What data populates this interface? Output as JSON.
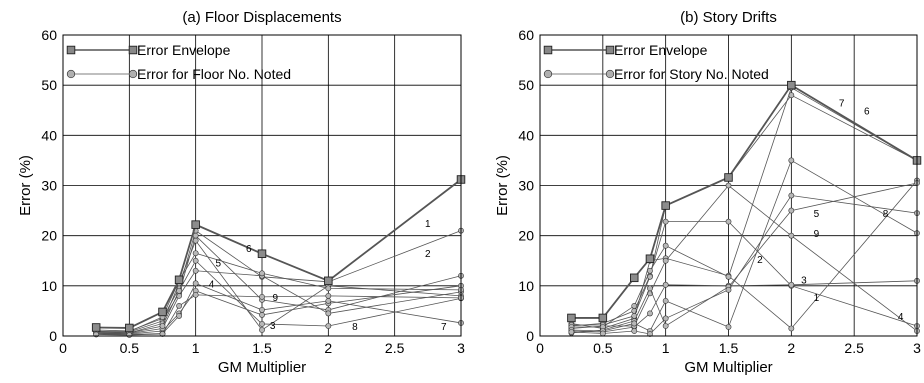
{
  "figure": {
    "panels_count": 2
  },
  "chart_data": [
    {
      "type": "line",
      "title": "(a) Floor Displacements",
      "xlabel": "GM Multiplier",
      "ylabel": "Error (%)",
      "xlim": [
        0,
        3
      ],
      "ylim": [
        0,
        60
      ],
      "xticks": [
        0,
        0.5,
        1,
        1.5,
        2,
        2.5,
        3
      ],
      "xtick_labels": [
        "0",
        "0.5",
        "1",
        "1.5",
        "2",
        "2.5",
        "3"
      ],
      "yticks": [
        0,
        10,
        20,
        30,
        40,
        50,
        60
      ],
      "ytick_labels": [
        "0",
        "10",
        "20",
        "30",
        "40",
        "50",
        "60"
      ],
      "x_scale": "piecewise-linear (0 to 2 spans 4 units, 2 to 3 spans 2 units; 2.5 gridline is the midpoint of 2 and 3)",
      "grid": true,
      "legend": {
        "position": "top-left",
        "entries": [
          {
            "label": "Error Envelope",
            "marker": "square",
            "color": "#888888"
          },
          {
            "label": "Error for Floor No. Noted",
            "marker": "circle",
            "color": "#b0b0b0"
          }
        ]
      },
      "envelope": {
        "name": "Error Envelope",
        "x": [
          0.25,
          0.5,
          0.75,
          0.875,
          1.0,
          1.5,
          2.0,
          3.0
        ],
        "y": [
          1.7,
          1.6,
          4.8,
          11.2,
          22.2,
          16.4,
          11.0,
          31.2
        ]
      },
      "series": [
        {
          "label": "1",
          "x": [
            0.25,
            0.5,
            0.75,
            0.875,
            1.0,
            1.5,
            2.0,
            3.0
          ],
          "y": [
            1.2,
            1.0,
            3.5,
            9.5,
            21.0,
            11.8,
            10.8,
            21.0
          ]
        },
        {
          "label": "2",
          "x": [
            0.25,
            0.5,
            0.75,
            0.875,
            1.0,
            1.5,
            2.0,
            3.0
          ],
          "y": [
            0.8,
            0.8,
            3.0,
            8.5,
            20.0,
            7.2,
            5.2,
            12.0
          ]
        },
        {
          "label": "3",
          "x": [
            0.25,
            0.5,
            0.75,
            0.875,
            1.0,
            1.5,
            2.0,
            3.0
          ],
          "y": [
            1.0,
            0.6,
            2.5,
            10.5,
            19.0,
            1.2,
            10.0,
            8.0
          ]
        },
        {
          "label": "4",
          "x": [
            0.25,
            0.5,
            0.75,
            0.875,
            1.0,
            1.5,
            2.0,
            3.0
          ],
          "y": [
            0.5,
            0.4,
            1.0,
            4.5,
            9.0,
            4.2,
            6.5,
            10.0
          ]
        },
        {
          "label": "5",
          "x": [
            0.25,
            0.5,
            0.75,
            0.875,
            1.0,
            1.5,
            2.0,
            3.0
          ],
          "y": [
            0.6,
            0.5,
            1.5,
            8.0,
            13.0,
            12.0,
            4.5,
            8.8
          ]
        },
        {
          "label": "6",
          "x": [
            0.25,
            0.5,
            0.75,
            0.875,
            1.0,
            1.5,
            2.0,
            3.0
          ],
          "y": [
            0.9,
            0.9,
            3.8,
            11.0,
            16.5,
            12.5,
            9.5,
            9.2
          ]
        },
        {
          "label": "7",
          "x": [
            0.25,
            0.5,
            0.75,
            0.875,
            1.0,
            1.5,
            2.0,
            3.0
          ],
          "y": [
            0.4,
            0.3,
            0.5,
            4.0,
            10.5,
            5.2,
            7.0,
            2.6
          ]
        },
        {
          "label": "8",
          "x": [
            0.25,
            0.5,
            0.75,
            0.875,
            1.0,
            1.5,
            2.0,
            3.0
          ],
          "y": [
            0.7,
            0.6,
            2.0,
            9.0,
            15.0,
            2.4,
            2.0,
            7.5
          ]
        },
        {
          "label": "9",
          "x": [
            0.25,
            0.5,
            0.75,
            0.875,
            1.0,
            1.5,
            2.0,
            3.0
          ],
          "y": [
            0.3,
            0.2,
            0.4,
            6.0,
            8.2,
            7.8,
            8.0,
            7.6
          ]
        }
      ],
      "annotations": [
        {
          "text": "1",
          "x": 2.75,
          "y": 22.5
        },
        {
          "text": "2",
          "x": 2.75,
          "y": 16.5
        },
        {
          "text": "3",
          "x": 1.58,
          "y": 2.2
        },
        {
          "text": "4",
          "x": 1.12,
          "y": 10.5
        },
        {
          "text": "5",
          "x": 1.17,
          "y": 14.7
        },
        {
          "text": "6",
          "x": 1.4,
          "y": 17.5
        },
        {
          "text": "7",
          "x": 2.87,
          "y": 2.0
        },
        {
          "text": "8",
          "x": 2.2,
          "y": 2.0
        },
        {
          "text": "9",
          "x": 1.6,
          "y": 7.8
        }
      ]
    },
    {
      "type": "line",
      "title": "(b) Story Drifts",
      "xlabel": "GM Multiplier",
      "ylabel": "Error (%)",
      "xlim": [
        0,
        3
      ],
      "ylim": [
        0,
        60
      ],
      "xticks": [
        0,
        0.5,
        1,
        1.5,
        2,
        2.5,
        3
      ],
      "xtick_labels": [
        "0",
        "0.5",
        "1",
        "1.5",
        "2",
        "2.5",
        "3"
      ],
      "yticks": [
        0,
        10,
        20,
        30,
        40,
        50,
        60
      ],
      "ytick_labels": [
        "0",
        "10",
        "20",
        "30",
        "40",
        "50",
        "60"
      ],
      "x_scale": "piecewise-linear (0 to 2 spans 4 units, 2 to 3 spans 2 units; 2.5 gridline is the midpoint of 2 and 3)",
      "grid": true,
      "legend": {
        "position": "top-left",
        "entries": [
          {
            "label": "Error Envelope",
            "marker": "square",
            "color": "#888888"
          },
          {
            "label": "Error for Story No. Noted",
            "marker": "circle",
            "color": "#b0b0b0"
          }
        ]
      },
      "envelope": {
        "name": "Error Envelope",
        "x": [
          0.25,
          0.5,
          0.75,
          0.875,
          1.0,
          1.5,
          2.0,
          3.0
        ],
        "y": [
          3.6,
          3.6,
          11.6,
          15.4,
          26.0,
          31.6,
          50.0,
          35.0
        ]
      },
      "series": [
        {
          "label": "1",
          "x": [
            0.25,
            0.5,
            0.75,
            0.875,
            1.0,
            1.5,
            2.0,
            3.0
          ],
          "y": [
            2.0,
            2.5,
            5.0,
            12.0,
            22.8,
            22.8,
            10.0,
            2.0
          ]
        },
        {
          "label": "2",
          "x": [
            0.25,
            0.5,
            0.75,
            0.875,
            1.0,
            1.5,
            2.0,
            3.0
          ],
          "y": [
            2.5,
            1.5,
            3.5,
            15.0,
            15.5,
            12.0,
            1.5,
            31.0
          ]
        },
        {
          "label": "3",
          "x": [
            0.25,
            0.5,
            0.75,
            0.875,
            1.0,
            1.5,
            2.0,
            3.0
          ],
          "y": [
            1.0,
            0.8,
            1.8,
            4.5,
            10.2,
            10.0,
            10.2,
            11.0
          ]
        },
        {
          "label": "4",
          "x": [
            0.25,
            0.5,
            0.75,
            0.875,
            1.0,
            1.5,
            2.0,
            3.0
          ],
          "y": [
            1.5,
            2.0,
            2.0,
            8.5,
            15.0,
            30.0,
            20.0,
            1.0
          ]
        },
        {
          "label": "5",
          "x": [
            0.25,
            0.5,
            0.75,
            0.875,
            1.0,
            1.5,
            2.0,
            3.0
          ],
          "y": [
            0.6,
            1.2,
            3.0,
            9.5,
            2.0,
            9.8,
            25.0,
            30.5
          ]
        },
        {
          "label": "6",
          "x": [
            0.25,
            0.5,
            0.75,
            0.875,
            1.0,
            1.5,
            2.0,
            3.0
          ],
          "y": [
            2.2,
            2.2,
            4.0,
            11.8,
            26.0,
            31.6,
            48.0,
            35.0
          ]
        },
        {
          "label": "7",
          "x": [
            0.25,
            0.5,
            0.75,
            0.875,
            1.0,
            1.5,
            2.0,
            3.0
          ],
          "y": [
            1.8,
            1.8,
            6.0,
            13.0,
            18.0,
            11.8,
            49.5,
            35.0
          ]
        },
        {
          "label": "8",
          "x": [
            0.25,
            0.5,
            0.75,
            0.875,
            1.0,
            1.5,
            2.0,
            3.0
          ],
          "y": [
            1.2,
            1.0,
            2.5,
            1.0,
            7.0,
            1.8,
            35.0,
            20.5
          ]
        },
        {
          "label": "9",
          "x": [
            0.25,
            0.5,
            0.75,
            0.875,
            1.0,
            1.5,
            2.0,
            3.0
          ],
          "y": [
            0.8,
            0.5,
            1.0,
            0.4,
            3.5,
            9.2,
            28.0,
            24.5
          ]
        }
      ],
      "annotations": [
        {
          "text": "1",
          "x": 2.2,
          "y": 7.8
        },
        {
          "text": "2",
          "x": 1.75,
          "y": 15.3
        },
        {
          "text": "3",
          "x": 2.1,
          "y": 11.3
        },
        {
          "text": "4",
          "x": 2.87,
          "y": 4.0
        },
        {
          "text": "5",
          "x": 2.2,
          "y": 24.5
        },
        {
          "text": "6",
          "x": 2.6,
          "y": 45.0
        },
        {
          "text": "7",
          "x": 2.4,
          "y": 46.5
        },
        {
          "text": "8",
          "x": 2.75,
          "y": 24.5
        },
        {
          "text": "9",
          "x": 2.2,
          "y": 20.5
        }
      ]
    }
  ]
}
